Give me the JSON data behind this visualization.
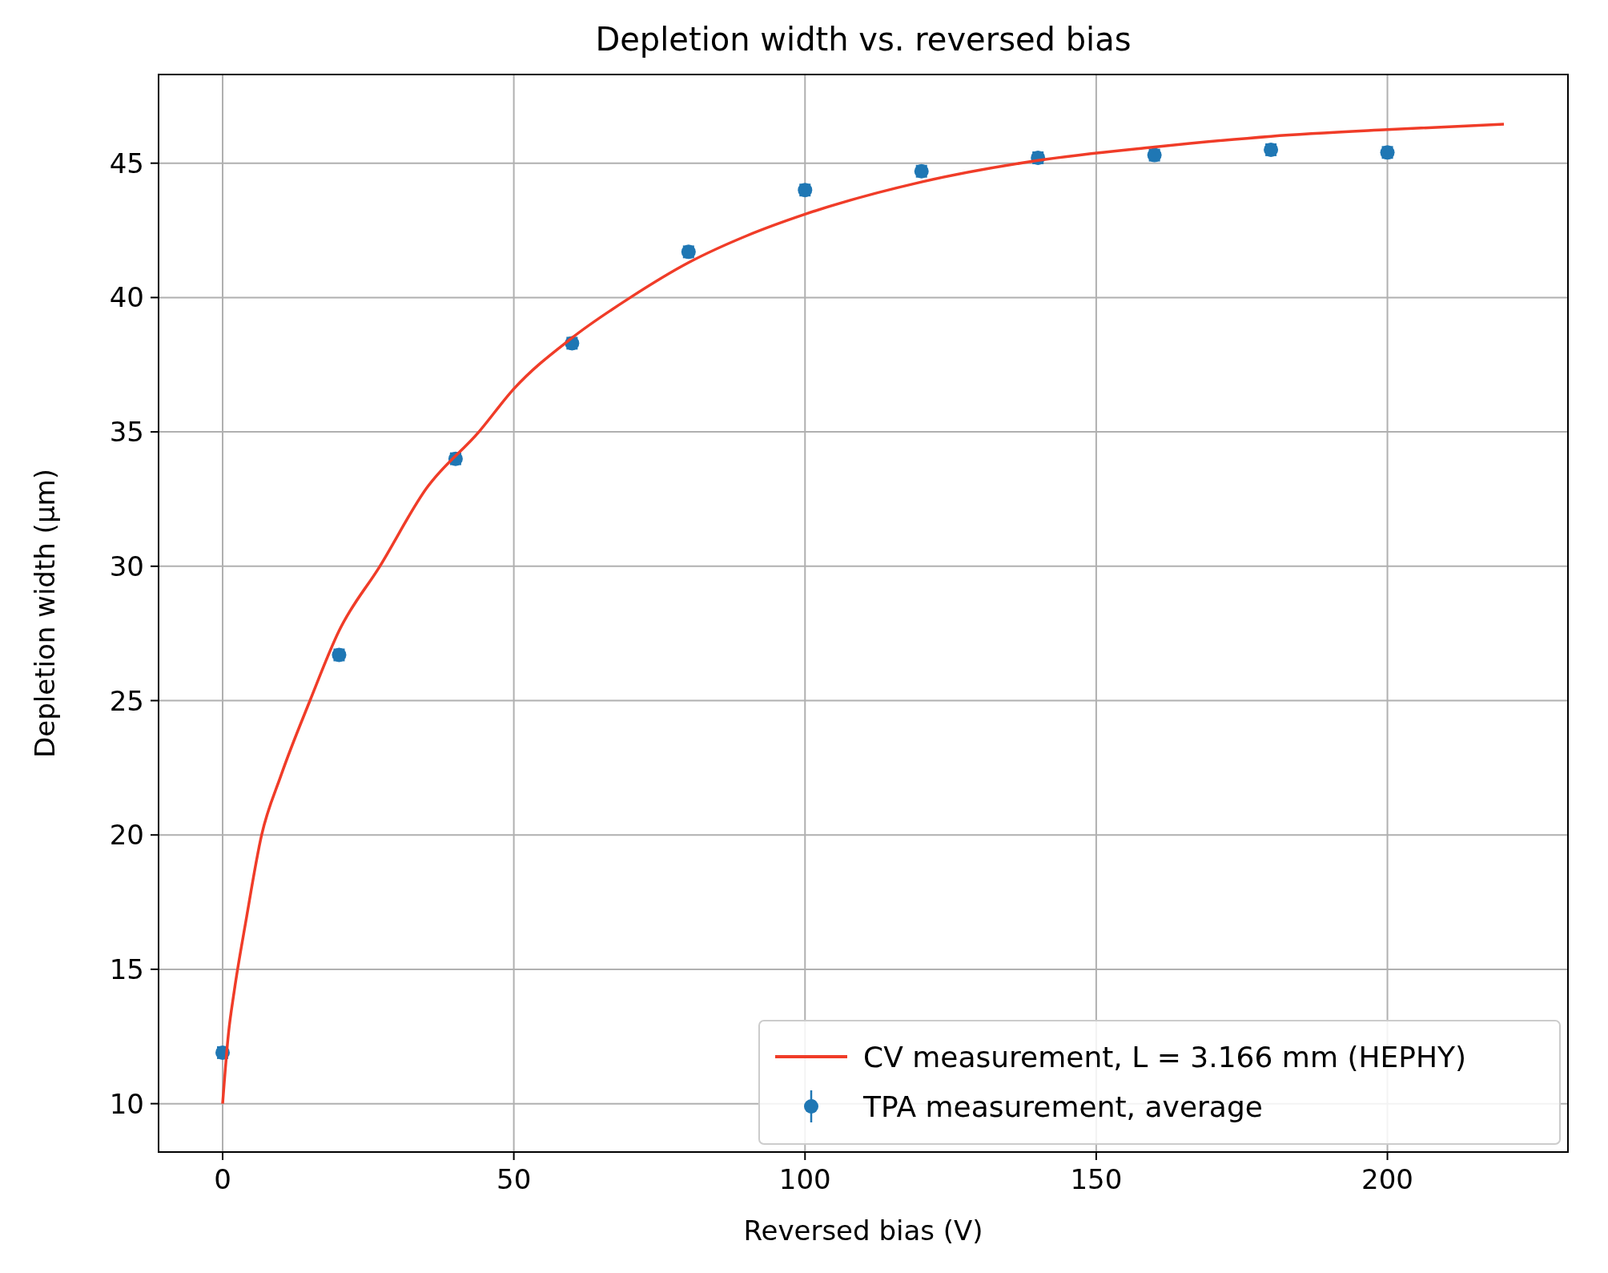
{
  "chart_data": {
    "type": "line",
    "title": "Depletion width vs. reversed bias",
    "xlabel": "Reversed bias (V)",
    "ylabel": "Depletion width (μm)",
    "xlim": [
      -11,
      231
    ],
    "ylim": [
      8.2,
      48.3
    ],
    "xticks": [
      0,
      50,
      100,
      150,
      200
    ],
    "yticks": [
      10,
      15,
      20,
      25,
      30,
      35,
      40,
      45
    ],
    "grid": true,
    "legend": "bottom right",
    "series": [
      {
        "name": "CV measurement, L = 3.166 mm (HEPHY)",
        "type": "line",
        "color": "#f03c28",
        "marker": "none",
        "line_style": "solid",
        "x": [
          0,
          1,
          2,
          4,
          6.7,
          10,
          15,
          20,
          27,
          35,
          44,
          50,
          60,
          70,
          80,
          90,
          100,
          120,
          140,
          160,
          180,
          200,
          220
        ],
        "values": [
          10,
          12.6,
          14.2,
          16.8,
          20,
          22.2,
          25,
          27.6,
          30,
          32.9,
          35,
          36.6,
          38.5,
          40,
          41.3,
          42.3,
          43.1,
          44.3,
          45.1,
          45.6,
          46.0,
          46.25,
          46.45
        ]
      },
      {
        "name": "TPA measurement, average",
        "type": "scatter",
        "color": "#1f77b4",
        "marker": "circle",
        "x": [
          0,
          20,
          40,
          60,
          80,
          100,
          120,
          140,
          160,
          180,
          200
        ],
        "values": [
          11.9,
          26.7,
          34.0,
          38.3,
          41.7,
          44.0,
          44.7,
          45.2,
          45.3,
          45.5,
          45.4
        ],
        "errors": [
          0.2,
          0.2,
          0.2,
          0.2,
          0.2,
          0.2,
          0.2,
          0.2,
          0.2,
          0.2,
          0.2
        ]
      }
    ]
  }
}
